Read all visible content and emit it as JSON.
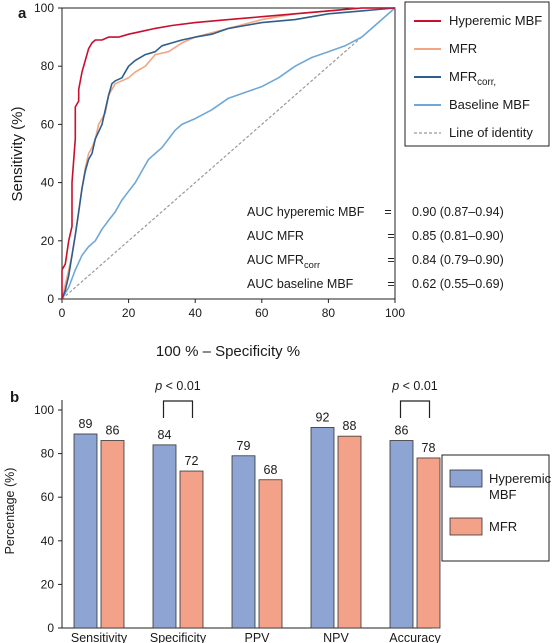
{
  "chart_data": [
    {
      "type": "line",
      "panel_label": "a",
      "xlabel": "100 % – Specificity %",
      "ylabel": "Sensitivity (%)",
      "xlim": [
        0,
        100
      ],
      "ylim": [
        0,
        100
      ],
      "xticks": [
        0,
        20,
        40,
        60,
        80,
        100
      ],
      "yticks": [
        0,
        20,
        40,
        60,
        80,
        100
      ],
      "legend_position": "top-right",
      "series": [
        {
          "name": "Hyperemic MBF",
          "color": "#c8102e",
          "style": "solid",
          "x": [
            0,
            0,
            1,
            2,
            3,
            3,
            4,
            4,
            5,
            5,
            6,
            7,
            8,
            9,
            10,
            12,
            14,
            17,
            20,
            24,
            28,
            33,
            40,
            50,
            60,
            70,
            80,
            90,
            100
          ],
          "y": [
            0,
            10,
            12,
            20,
            25,
            40,
            55,
            66,
            68,
            72,
            78,
            82,
            86,
            88,
            89,
            89,
            90,
            90,
            91,
            92,
            93,
            94,
            95,
            96,
            97,
            98,
            99,
            100,
            100
          ]
        },
        {
          "name": "MFR",
          "color": "#f4a582",
          "style": "solid",
          "x": [
            0,
            1,
            2,
            3,
            4,
            5,
            6,
            7,
            8,
            9,
            10,
            11,
            12,
            13,
            14,
            15,
            16,
            18,
            20,
            22,
            25,
            28,
            32,
            36,
            40,
            50,
            60,
            70,
            80,
            90,
            100
          ],
          "y": [
            0,
            5,
            10,
            15,
            22,
            30,
            38,
            45,
            50,
            52,
            55,
            60,
            62,
            64,
            70,
            72,
            74,
            75,
            76,
            78,
            80,
            84,
            85,
            88,
            90,
            93,
            96,
            98,
            99,
            100,
            100
          ]
        },
        {
          "name": "MFR",
          "name_subscript": "corr,",
          "color": "#2e5e8c",
          "style": "solid",
          "x": [
            0,
            1,
            2,
            3,
            4,
            5,
            6,
            7,
            8,
            9,
            10,
            12,
            14,
            15,
            16,
            18,
            20,
            22,
            25,
            28,
            30,
            33,
            36,
            40,
            45,
            50,
            55,
            60,
            70,
            80,
            90,
            100
          ],
          "y": [
            0,
            3,
            8,
            15,
            22,
            30,
            38,
            44,
            48,
            50,
            55,
            60,
            70,
            74,
            75,
            76,
            80,
            82,
            84,
            85,
            87,
            88,
            89,
            90,
            91,
            93,
            94,
            95,
            96,
            98,
            99,
            100
          ]
        },
        {
          "name": "Baseline MBF",
          "color": "#6fa8d6",
          "style": "solid",
          "x": [
            0,
            2,
            4,
            6,
            8,
            10,
            12,
            14,
            16,
            18,
            20,
            22,
            24,
            26,
            28,
            30,
            32,
            34,
            36,
            38,
            40,
            45,
            50,
            55,
            60,
            65,
            70,
            75,
            80,
            85,
            90,
            95,
            100
          ],
          "y": [
            0,
            4,
            10,
            15,
            18,
            20,
            24,
            27,
            30,
            34,
            37,
            40,
            44,
            48,
            50,
            52,
            55,
            58,
            60,
            61,
            62,
            65,
            69,
            71,
            73,
            76,
            80,
            83,
            85,
            87,
            90,
            95,
            100
          ]
        },
        {
          "name": "Line of identity",
          "color": "#999999",
          "style": "dashed",
          "x": [
            0,
            100
          ],
          "y": [
            0,
            100
          ]
        }
      ],
      "annotations": [
        {
          "label": "AUC hyperemic MBF",
          "label_subscript": "",
          "sep": "=",
          "value": "0.90 (0.87–0.94)"
        },
        {
          "label": "AUC MFR",
          "label_subscript": "",
          "sep": "=",
          "value": "0.85 (0.81–0.90)"
        },
        {
          "label": "AUC MFR",
          "label_subscript": "corr",
          "sep": "=",
          "value": "0.84 (0.79–0.90)"
        },
        {
          "label": "AUC baseline MBF",
          "label_subscript": "",
          "sep": "=",
          "value": "0.62 (0.55–0.69)"
        }
      ]
    },
    {
      "type": "bar",
      "panel_label": "b",
      "ylabel": "Percentage (%)",
      "ylim": [
        0,
        100
      ],
      "yticks": [
        0,
        20,
        40,
        60,
        80,
        100
      ],
      "categories": [
        "Sensitivity",
        "Specificity",
        "PPV",
        "NPV",
        "Accuracy"
      ],
      "legend_position": "right",
      "series": [
        {
          "name": "Hyperemic MBF",
          "color": "#8ea4d2",
          "values": [
            89,
            84,
            79,
            92,
            86
          ]
        },
        {
          "name": "MFR",
          "color": "#f4a18a",
          "values": [
            86,
            72,
            68,
            88,
            78
          ]
        }
      ],
      "significance": [
        {
          "category_index": 1,
          "label_italic": "p",
          "label_rest": " < 0.01"
        },
        {
          "category_index": 4,
          "label_italic": "p",
          "label_rest": " < 0.01"
        }
      ]
    }
  ]
}
